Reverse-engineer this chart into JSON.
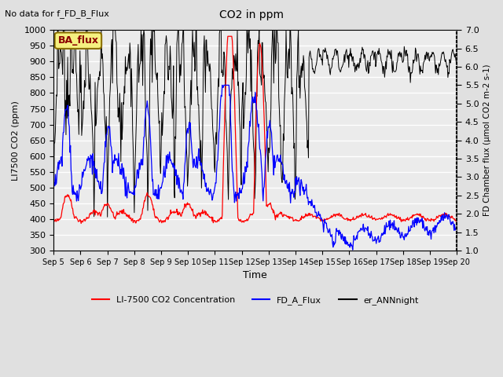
{
  "title": "CO2 in ppm",
  "top_left_text": "No data for f_FD_B_Flux",
  "legend_box_label": "BA_flux",
  "xlabel": "Time",
  "ylabel_left": "LI7500 CO2 (ppm)",
  "ylabel_right": "FD Chamber flux (μmol CO2 m-2 s-1)",
  "ylim_left": [
    300,
    1000
  ],
  "ylim_right": [
    1.0,
    7.0
  ],
  "yticks_left": [
    300,
    350,
    400,
    450,
    500,
    550,
    600,
    650,
    700,
    750,
    800,
    850,
    900,
    950,
    1000
  ],
  "yticks_right": [
    1.0,
    1.5,
    2.0,
    2.5,
    3.0,
    3.5,
    4.0,
    4.5,
    5.0,
    5.5,
    6.0,
    6.5,
    7.0
  ],
  "xtick_labels": [
    "Sep 5",
    "Sep 6",
    "Sep 7",
    "Sep 8",
    "Sep 9",
    "Sep 10",
    "Sep 11",
    "Sep 12",
    "Sep 13",
    "Sep 14",
    "Sep 15",
    "Sep 16",
    "Sep 17",
    "Sep 18",
    "Sep 19",
    "Sep 20"
  ],
  "line_red_label": "LI-7500 CO2 Concentration",
  "line_blue_label": "FD_A_Flux",
  "line_black_label": "er_ANNnight",
  "background_color": "#e0e0e0",
  "plot_bg_color": "#ebebeb",
  "legend_box_facecolor": "#f5f080",
  "legend_box_edgecolor": "#8B7000",
  "grid_color": "#ffffff",
  "seed": 42
}
